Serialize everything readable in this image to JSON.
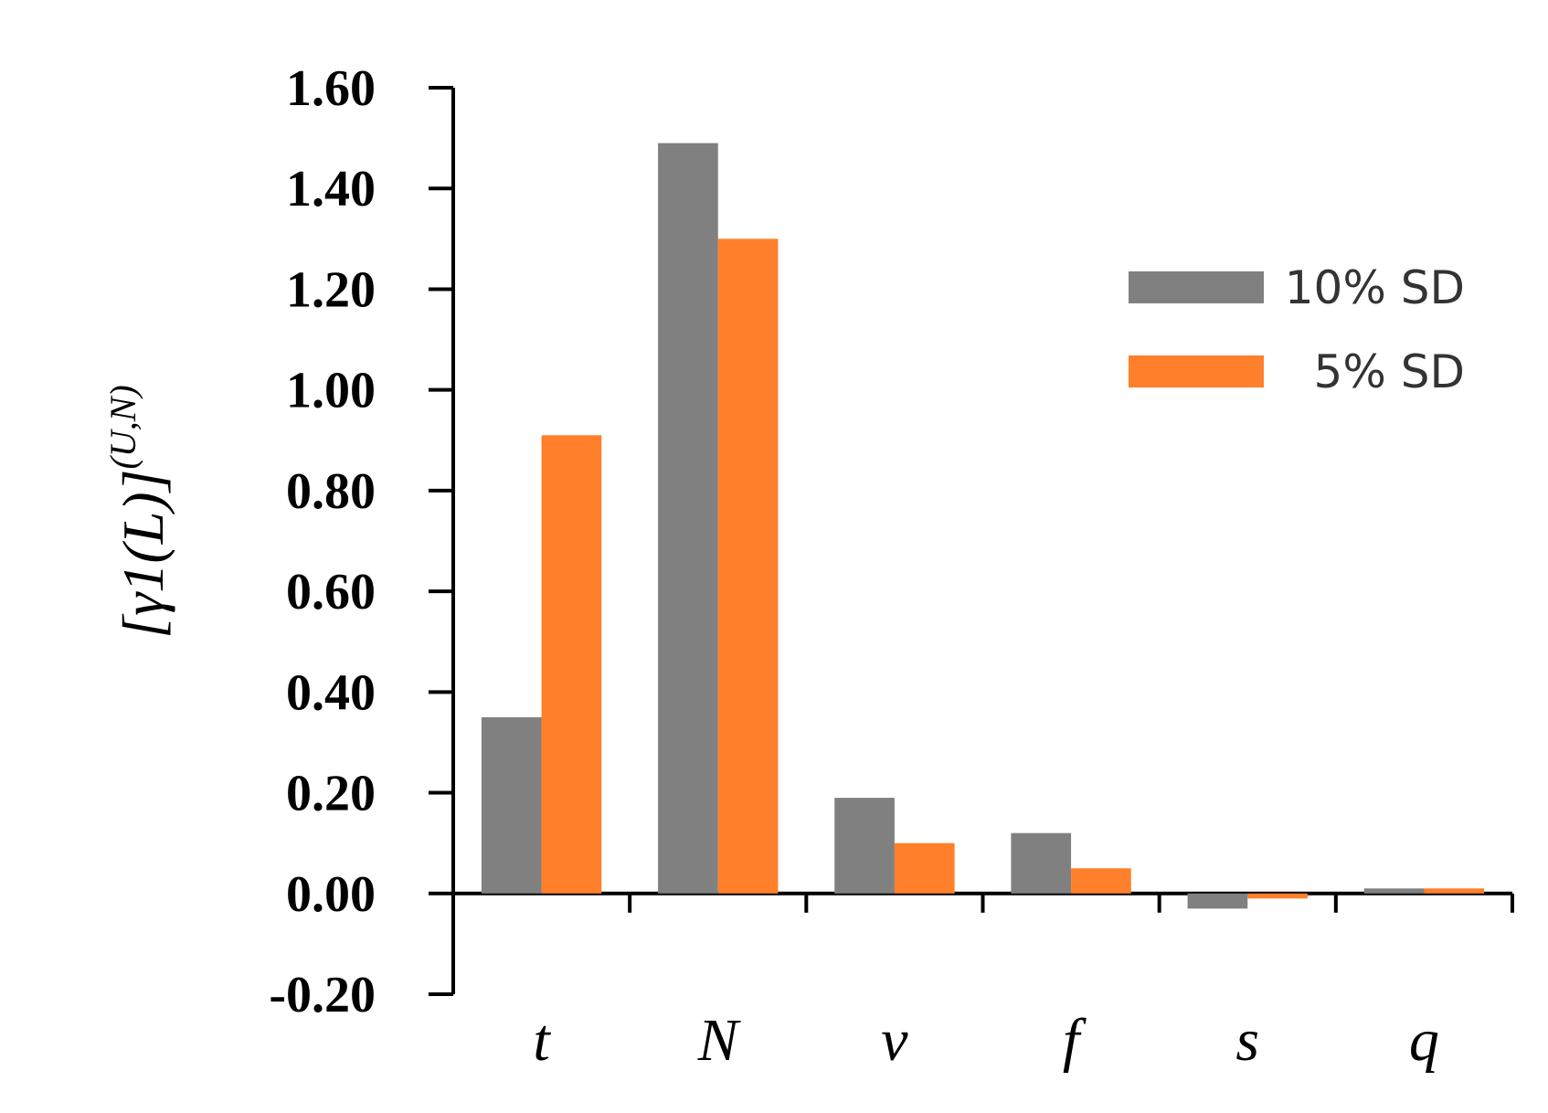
{
  "chart_data": {
    "type": "bar",
    "ylabel": "[γ1(L)](U,N)",
    "categories": [
      "t",
      "N",
      "ν",
      "f",
      "s",
      "q"
    ],
    "ylim": [
      -0.2,
      1.6
    ],
    "yticks": [
      "-0.20",
      "0.00",
      "0.20",
      "0.40",
      "0.60",
      "0.80",
      "1.00",
      "1.20",
      "1.40",
      "1.60"
    ],
    "ytick_values": [
      -0.2,
      0.0,
      0.2,
      0.4,
      0.6,
      0.8,
      1.0,
      1.2,
      1.4,
      1.6
    ],
    "legend_position": "top-right",
    "series": [
      {
        "name": "10% SD",
        "color": "#808080",
        "values": [
          0.35,
          1.49,
          0.19,
          0.12,
          -0.03,
          0.01
        ]
      },
      {
        "name": "5% SD",
        "color": "#FF7F2A",
        "values": [
          0.91,
          1.3,
          0.1,
          0.05,
          -0.01,
          0.01
        ]
      }
    ],
    "grid": false
  }
}
